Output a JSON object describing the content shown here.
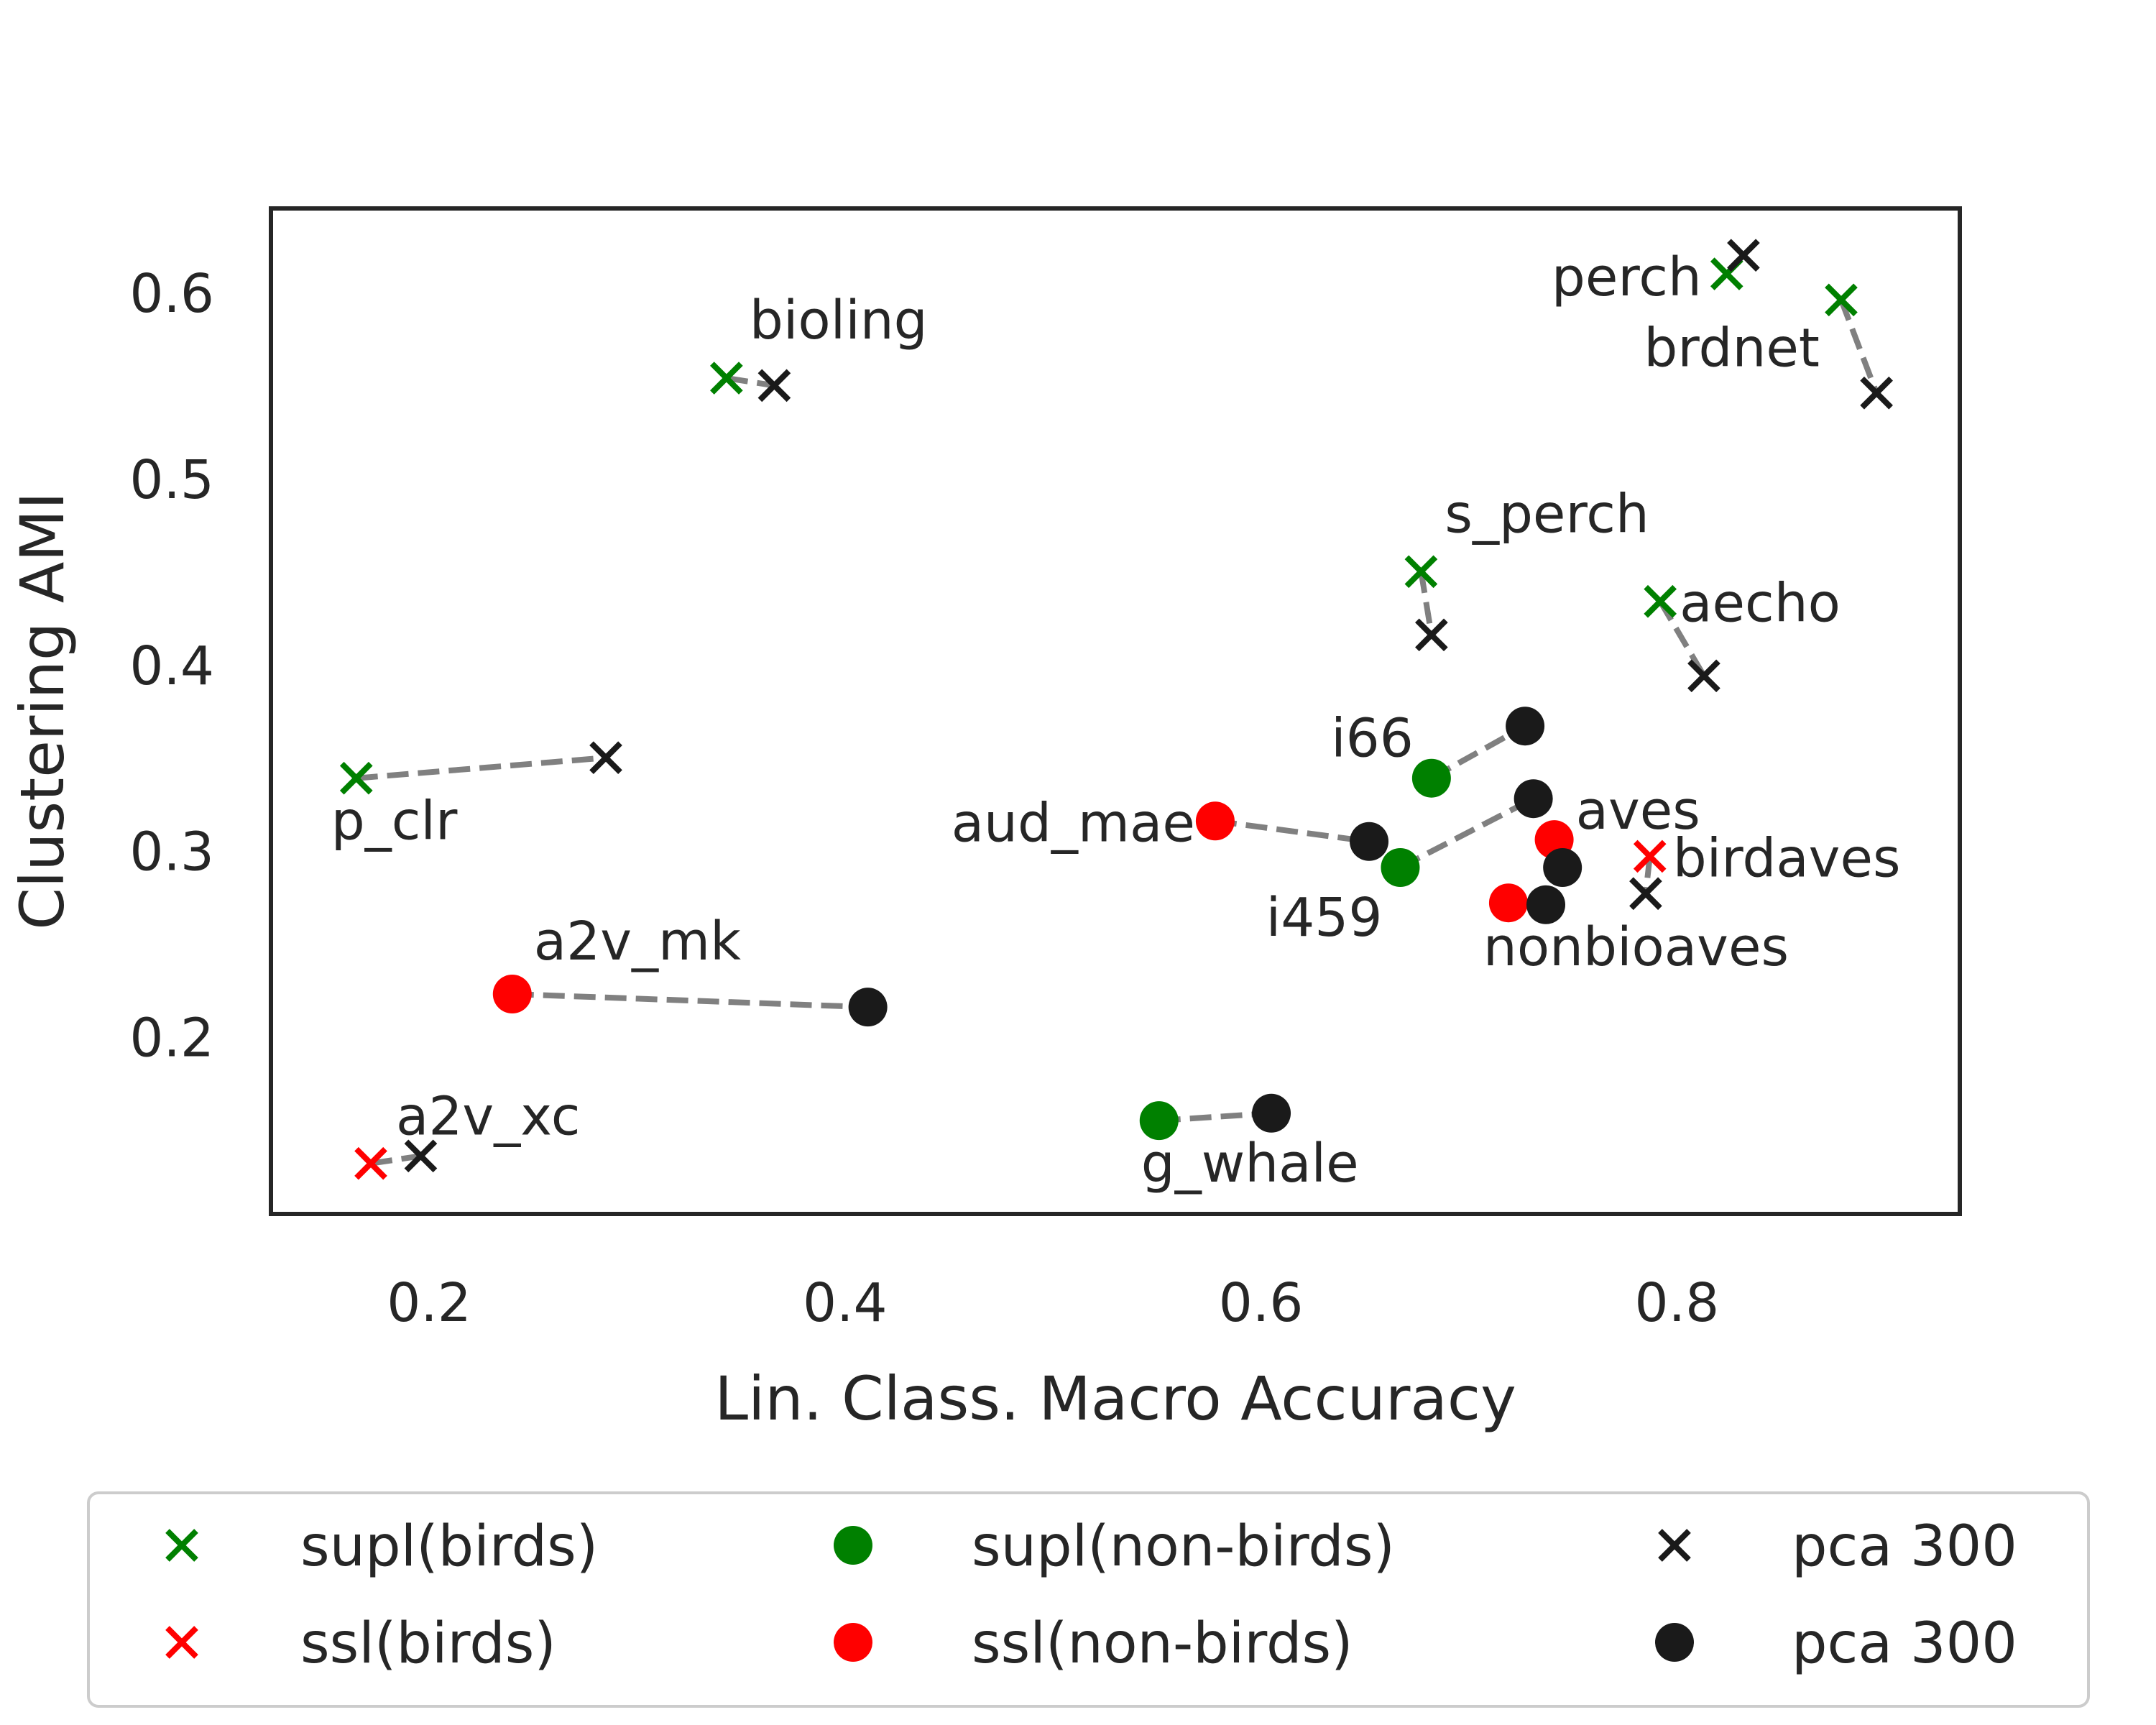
{
  "chart_data": {
    "type": "scatter",
    "xlabel": "Lin. Class. Macro Accuracy",
    "ylabel": "Clustering AMI",
    "xlim": [
      0.125,
      0.935
    ],
    "ylim": [
      0.106,
      0.644
    ],
    "xticks": [
      0.2,
      0.4,
      0.6,
      0.8
    ],
    "yticks": [
      0.2,
      0.3,
      0.4,
      0.5,
      0.6
    ],
    "xtick_labels": [
      "0.2",
      "0.4",
      "0.6",
      "0.8"
    ],
    "ytick_labels": [
      "0.2",
      "0.3",
      "0.4",
      "0.5",
      "0.6"
    ],
    "grid": false,
    "legend_position": "bottom",
    "colors": {
      "supl": "#008000",
      "ssl": "#ff0000",
      "pca": "#1a1a1a",
      "connector": "#808080",
      "frame": "#262626",
      "legend_border": "#cccccc"
    },
    "models": [
      {
        "name": "perch",
        "marker": "x",
        "group": "supl",
        "x": 0.824,
        "y": 0.61,
        "pca_x": 0.832,
        "pca_y": 0.62
      },
      {
        "name": "brdnet",
        "marker": "x",
        "group": "supl",
        "x": 0.879,
        "y": 0.596,
        "pca_x": 0.896,
        "pca_y": 0.546
      },
      {
        "name": "bioling",
        "marker": "x",
        "group": "supl",
        "x": 0.343,
        "y": 0.554,
        "pca_x": 0.366,
        "pca_y": 0.55
      },
      {
        "name": "s_perch",
        "marker": "x",
        "group": "supl",
        "x": 0.677,
        "y": 0.45,
        "pca_x": 0.682,
        "pca_y": 0.416
      },
      {
        "name": "aecho",
        "marker": "x",
        "group": "supl",
        "x": 0.792,
        "y": 0.434,
        "pca_x": 0.813,
        "pca_y": 0.394
      },
      {
        "name": "p_clr",
        "marker": "x",
        "group": "supl",
        "x": 0.165,
        "y": 0.339,
        "pca_x": 0.285,
        "pca_y": 0.35
      },
      {
        "name": "birdaves",
        "marker": "x",
        "group": "ssl",
        "x": 0.787,
        "y": 0.297,
        "pca_x": 0.785,
        "pca_y": 0.277
      },
      {
        "name": "a2v_xc",
        "marker": "x",
        "group": "ssl",
        "x": 0.172,
        "y": 0.132,
        "pca_x": 0.196,
        "pca_y": 0.136
      },
      {
        "name": "i66",
        "marker": "o",
        "group": "supl",
        "x": 0.682,
        "y": 0.339,
        "pca_x": 0.727,
        "pca_y": 0.367
      },
      {
        "name": "i459",
        "marker": "o",
        "group": "supl",
        "x": 0.667,
        "y": 0.291,
        "pca_x": 0.731,
        "pca_y": 0.328
      },
      {
        "name": "g_whale",
        "marker": "o",
        "group": "supl",
        "x": 0.551,
        "y": 0.155,
        "pca_x": 0.605,
        "pca_y": 0.159
      },
      {
        "name": "aud_mae",
        "marker": "o",
        "group": "ssl",
        "x": 0.578,
        "y": 0.316,
        "pca_x": 0.652,
        "pca_y": 0.305
      },
      {
        "name": "aves",
        "marker": "o",
        "group": "ssl",
        "x": 0.741,
        "y": 0.306,
        "pca_x": 0.745,
        "pca_y": 0.291
      },
      {
        "name": "nonbioaves",
        "marker": "o",
        "group": "ssl",
        "x": 0.719,
        "y": 0.272,
        "pca_x": 0.737,
        "pca_y": 0.271
      },
      {
        "name": "a2v_mk",
        "marker": "o",
        "group": "ssl",
        "x": 0.24,
        "y": 0.223,
        "pca_x": 0.411,
        "pca_y": 0.216
      }
    ],
    "legend": [
      {
        "label": "supl(birds)",
        "marker": "x",
        "color": "#008000"
      },
      {
        "label": "supl(non-birds)",
        "marker": "o",
        "color": "#008000"
      },
      {
        "label": "pca 300",
        "marker": "x",
        "color": "#1a1a1a"
      },
      {
        "label": "ssl(birds)",
        "marker": "x",
        "color": "#ff0000"
      },
      {
        "label": "ssl(non-birds)",
        "marker": "o",
        "color": "#ff0000"
      },
      {
        "label": "pca 300",
        "marker": "o",
        "color": "#1a1a1a"
      }
    ]
  }
}
